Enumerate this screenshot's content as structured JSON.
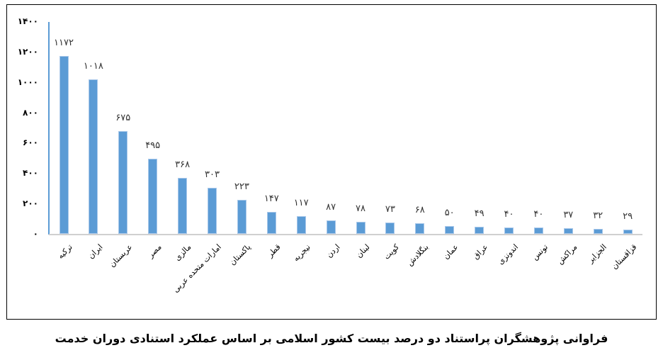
{
  "chart_data": {
    "type": "bar",
    "title": "فراوانی پژوهشگران پراستناد دو درصد بیست کشور اسلامی بر اساس عملکرد استنادی دوران خدمت",
    "xlabel": "",
    "ylabel": "",
    "ylim": [
      0,
      1400
    ],
    "yticks": [
      "۰",
      "۲۰۰",
      "۴۰۰",
      "۶۰۰",
      "۸۰۰",
      "۱۰۰۰",
      "۱۲۰۰",
      "۱۴۰۰"
    ],
    "ytick_values": [
      0,
      200,
      400,
      600,
      800,
      1000,
      1200,
      1400
    ],
    "grid": false,
    "legend": null,
    "bar_color": "#5b9bd5",
    "categories": [
      "ترکیه",
      "ایران",
      "عربستان",
      "مصر",
      "مالزی",
      "امارات متحده عربی",
      "پاکستان",
      "قطر",
      "نیجریه",
      "اردن",
      "لبنان",
      "کویت",
      "بنگلادش",
      "عمان",
      "عراق",
      "اندونزی",
      "تونس",
      "مراکش",
      "الجزایر",
      "قزاقستان"
    ],
    "values": [
      1172,
      1018,
      675,
      495,
      368,
      303,
      223,
      147,
      117,
      87,
      78,
      73,
      68,
      50,
      49,
      40,
      40,
      37,
      32,
      29
    ],
    "value_labels": [
      "۱۱۷۲",
      "۱۰۱۸",
      "۶۷۵",
      "۴۹۵",
      "۳۶۸",
      "۳۰۳",
      "۲۲۳",
      "۱۴۷",
      "۱۱۷",
      "۸۷",
      "۷۸",
      "۷۳",
      "۶۸",
      "۵۰",
      "۴۹",
      "۴۰",
      "۴۰",
      "۳۷",
      "۳۲",
      "۲۹"
    ]
  },
  "caption": "فراوانی پژوهشگران پراستناد دو درصد بیست کشور اسلامی بر اساس عملکرد استنادی دوران خدمت"
}
